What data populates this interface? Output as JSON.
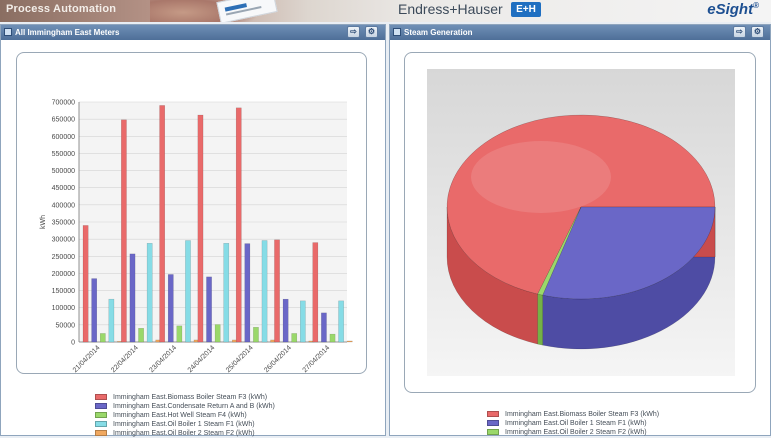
{
  "header": {
    "left_text": "Process Automation",
    "brand_text": "Endress+Hauser",
    "brand_logo": "E+H",
    "product": "eSight",
    "product_mark": "®"
  },
  "panels": {
    "left": {
      "title": "All Immingham East Meters"
    },
    "right": {
      "title": "Steam Generation"
    }
  },
  "icons": {
    "panel_app": "window-icon",
    "popout": "popout-icon",
    "settings": "gear-icon"
  },
  "colors": {
    "red": "#e96a6a",
    "blue": "#6a67c7",
    "green": "#9ad86a",
    "cyan": "#86dce6",
    "orange": "#f0a860"
  },
  "chart_data": [
    {
      "type": "bar",
      "ylabel": "kWh",
      "ylim": [
        0,
        700000
      ],
      "yticks": [
        "0",
        "50000",
        "100000",
        "150000",
        "200000",
        "250000",
        "300000",
        "350000",
        "400000",
        "450000",
        "500000",
        "550000",
        "600000",
        "650000",
        "700000"
      ],
      "categories": [
        "21/04/2014",
        "22/04/2014",
        "23/04/2014",
        "24/04/2014",
        "25/04/2014",
        "26/04/2014",
        "27/04/2014"
      ],
      "series": [
        {
          "name": "Immingham East.Biomass Boiler Steam F3 (kWh)",
          "values": [
            340000,
            648000,
            690000,
            662000,
            683000,
            298000,
            290000
          ]
        },
        {
          "name": "Immingham East.Condensate Return A and B (kWh)",
          "values": [
            185000,
            257000,
            197000,
            190000,
            287000,
            125000,
            85000
          ]
        },
        {
          "name": "Immingham East.Hot Well Steam F4 (kWh)",
          "values": [
            25000,
            40000,
            47000,
            51000,
            43000,
            25000,
            23000
          ]
        },
        {
          "name": "Immingham East.Oil Boiler 1 Steam F1 (kWh)",
          "values": [
            125000,
            288000,
            296000,
            288000,
            296000,
            120000,
            120000
          ]
        },
        {
          "name": "Immingham East.Oil Boiler 2 Steam F2 (kWh)",
          "values": [
            2000,
            6000,
            6000,
            6000,
            6000,
            3000,
            3000
          ]
        }
      ]
    },
    {
      "type": "pie",
      "series": [
        {
          "name": "Immingham East.Biomass Boiler Steam F3 (kWh)",
          "value": 3611000
        },
        {
          "name": "Immingham East.Oil Boiler 1 Steam F1 (kWh)",
          "value": 1533000
        },
        {
          "name": "Immingham East.Oil Boiler 2 Steam F2 (kWh)",
          "value": 32000
        }
      ]
    }
  ]
}
